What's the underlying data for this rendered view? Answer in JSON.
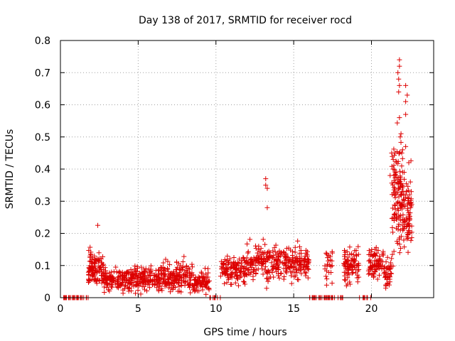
{
  "chart_data": {
    "type": "scatter",
    "title": "Day 138 of 2017, SRMTID for receiver rocd",
    "xlabel": "GPS time / hours",
    "ylabel": "SRMTID / TECUs",
    "xlim": [
      0,
      24
    ],
    "ylim": [
      0,
      0.8
    ],
    "x_ticks": [
      "0",
      "5",
      "10",
      "15",
      "20"
    ],
    "y_ticks": [
      "0",
      "0.1",
      "0.2",
      "0.3",
      "0.4",
      "0.5",
      "0.6",
      "0.7",
      "0.8"
    ],
    "grid": true,
    "marker": "+",
    "marker_color": "#dd0000",
    "series": [
      {
        "name": "SRMTID",
        "segments": [
          {
            "x0": 0.2,
            "x1": 1.8,
            "mean": 0.0,
            "spread": 0.0,
            "count": 30
          },
          {
            "x0": 1.8,
            "x1": 2.8,
            "mean": 0.09,
            "spread": 0.05,
            "count": 110
          },
          {
            "x0": 2.8,
            "x1": 4.5,
            "mean": 0.055,
            "spread": 0.035,
            "count": 140
          },
          {
            "x0": 4.5,
            "x1": 6.5,
            "mean": 0.06,
            "spread": 0.04,
            "count": 160
          },
          {
            "x0": 6.5,
            "x1": 8.5,
            "mean": 0.065,
            "spread": 0.045,
            "count": 160
          },
          {
            "x0": 8.5,
            "x1": 9.6,
            "mean": 0.05,
            "spread": 0.035,
            "count": 80
          },
          {
            "x0": 9.6,
            "x1": 10.3,
            "mean": 0.0,
            "spread": 0.0,
            "count": 10
          },
          {
            "x0": 10.3,
            "x1": 12.0,
            "mean": 0.085,
            "spread": 0.05,
            "count": 130
          },
          {
            "x0": 12.0,
            "x1": 14.0,
            "mean": 0.11,
            "spread": 0.06,
            "count": 150
          },
          {
            "x0": 14.0,
            "x1": 16.0,
            "mean": 0.11,
            "spread": 0.055,
            "count": 150
          },
          {
            "x0": 16.0,
            "x1": 17.5,
            "mean": 0.0,
            "spread": 0.0,
            "count": 30
          },
          {
            "x0": 17.0,
            "x1": 17.5,
            "mean": 0.11,
            "spread": 0.06,
            "count": 25
          },
          {
            "x0": 17.5,
            "x1": 18.2,
            "mean": 0.0,
            "spread": 0.0,
            "count": 10
          },
          {
            "x0": 18.2,
            "x1": 19.2,
            "mean": 0.1,
            "spread": 0.06,
            "count": 90
          },
          {
            "x0": 19.2,
            "x1": 20.0,
            "mean": 0.0,
            "spread": 0.0,
            "count": 10
          },
          {
            "x0": 19.8,
            "x1": 20.8,
            "mean": 0.11,
            "spread": 0.05,
            "count": 80
          },
          {
            "x0": 20.8,
            "x1": 21.3,
            "mean": 0.08,
            "spread": 0.05,
            "count": 40
          },
          {
            "x0": 21.3,
            "x1": 22.0,
            "mean": 0.3,
            "spread": 0.2,
            "count": 120
          },
          {
            "x0": 22.0,
            "x1": 22.6,
            "mean": 0.26,
            "spread": 0.12,
            "count": 80
          }
        ],
        "highlights": [
          {
            "x": 2.4,
            "y": 0.225
          },
          {
            "x": 13.2,
            "y": 0.37
          },
          {
            "x": 13.2,
            "y": 0.35
          },
          {
            "x": 13.3,
            "y": 0.34
          },
          {
            "x": 13.3,
            "y": 0.28
          },
          {
            "x": 21.8,
            "y": 0.74
          },
          {
            "x": 21.8,
            "y": 0.72
          },
          {
            "x": 21.7,
            "y": 0.7
          },
          {
            "x": 21.75,
            "y": 0.68
          },
          {
            "x": 21.8,
            "y": 0.66
          },
          {
            "x": 21.75,
            "y": 0.64
          },
          {
            "x": 22.2,
            "y": 0.66
          },
          {
            "x": 22.3,
            "y": 0.63
          },
          {
            "x": 22.2,
            "y": 0.61
          },
          {
            "x": 22.2,
            "y": 0.57
          },
          {
            "x": 21.8,
            "y": 0.56
          },
          {
            "x": 21.9,
            "y": 0.51
          },
          {
            "x": 21.85,
            "y": 0.5
          },
          {
            "x": 22.2,
            "y": 0.47
          },
          {
            "x": 22.0,
            "y": 0.46
          },
          {
            "x": 21.95,
            "y": 0.45
          },
          {
            "x": 21.3,
            "y": 0.45
          },
          {
            "x": 21.4,
            "y": 0.43
          },
          {
            "x": 22.4,
            "y": 0.42
          },
          {
            "x": 21.4,
            "y": 0.4
          },
          {
            "x": 22.1,
            "y": 0.39
          },
          {
            "x": 21.2,
            "y": 0.38
          },
          {
            "x": 22.5,
            "y": 0.36
          },
          {
            "x": 21.5,
            "y": 0.34
          },
          {
            "x": 22.45,
            "y": 0.32
          }
        ]
      }
    ]
  }
}
